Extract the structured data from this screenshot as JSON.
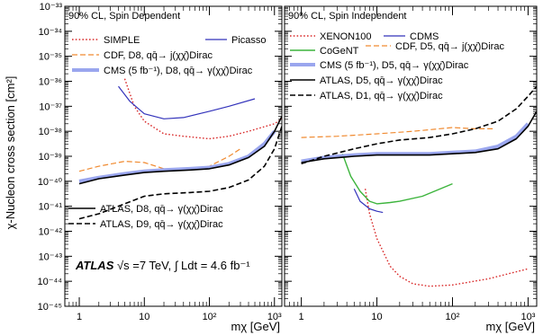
{
  "chart_data": {
    "type": "line",
    "ylabel": "χ-Nucleon cross section [cm²]",
    "y_scale": "log",
    "x_scale": "log",
    "ylim": [
      1e-45,
      1e-33
    ],
    "xlim": [
      0.6,
      1300
    ],
    "y_ticks": [
      "10⁻⁴⁵",
      "10⁻⁴⁴",
      "10⁻⁴³",
      "10⁻⁴²",
      "10⁻⁴¹",
      "10⁻⁴⁰",
      "10⁻³⁹",
      "10⁻³⁸",
      "10⁻³⁷",
      "10⁻³⁶",
      "10⁻³⁵",
      "10⁻³⁴",
      "10⁻³³"
    ],
    "panels": [
      {
        "corner_label": "90% CL, Spin Dependent",
        "xlabel": "mχ [GeV]",
        "x_ticks": [
          "1",
          "10",
          "10²",
          "10³"
        ],
        "series": [
          {
            "name": "SIMPLE",
            "color": "#d92b2b",
            "dash": "dotted",
            "width": 1.4,
            "x": [
              5,
              7,
              10,
              20,
              40,
              100,
              200,
              400,
              1000,
              1300
            ],
            "y": [
              -35.9,
              -37.0,
              -37.6,
              -38.1,
              -38.2,
              -38.3,
              -38.2,
              -38.0,
              -37.7,
              -37.5
            ]
          },
          {
            "name": "Picasso",
            "color": "#3333bb",
            "dash": "solid",
            "width": 1.2,
            "x": [
              4,
              6,
              10,
              20,
              40,
              100,
              200,
              500
            ],
            "y": [
              -36.2,
              -36.8,
              -37.3,
              -37.5,
              -37.45,
              -37.2,
              -37.0,
              -36.7
            ]
          },
          {
            "name": "CDF, D8, qq̄→ j(χχ̄)Dirac",
            "color": "#f08a30",
            "dash": "dashed",
            "width": 1.2,
            "x": [
              1,
              2,
              5,
              10,
              20,
              40,
              100,
              200,
              300
            ],
            "y": [
              -39.6,
              -39.4,
              -39.2,
              -39.25,
              -39.5,
              -39.55,
              -39.4,
              -39.0,
              -38.7
            ]
          },
          {
            "name": "CMS (5 fb⁻¹), D8, qq̄→ γ(χχ̄)Dirac",
            "color": "#9aa6ee",
            "dash": "solid",
            "width": 4,
            "x": [
              1,
              2,
              5,
              10,
              20,
              50,
              100,
              200,
              400,
              700,
              1000
            ],
            "y": [
              -40.0,
              -39.85,
              -39.7,
              -39.6,
              -39.55,
              -39.5,
              -39.45,
              -39.3,
              -39.0,
              -38.5,
              -38.0
            ]
          },
          {
            "name": "ATLAS, D8, qq̄→ γ(χχ̄)Dirac",
            "color": "#000000",
            "dash": "solid",
            "width": 1.6,
            "x": [
              1,
              2,
              5,
              10,
              20,
              50,
              100,
              200,
              400,
              700,
              1000,
              1300
            ],
            "y": [
              -40.1,
              -39.9,
              -39.75,
              -39.65,
              -39.6,
              -39.55,
              -39.5,
              -39.35,
              -39.05,
              -38.6,
              -38.0,
              -37.4
            ]
          },
          {
            "name": "ATLAS, D9, qq̄→ γ(χχ̄)Dirac",
            "color": "#000000",
            "dash": "dashed",
            "width": 1.6,
            "x": [
              1,
              2,
              5,
              10,
              20,
              50,
              100,
              200,
              400,
              700,
              1000,
              1300
            ],
            "y": [
              -41.5,
              -41.3,
              -40.9,
              -40.6,
              -40.5,
              -40.45,
              -40.4,
              -40.25,
              -39.95,
              -39.4,
              -38.7,
              -37.8
            ]
          }
        ],
        "atlas_label": {
          "bold": "ATLAS",
          "text": "√s =7 TeV, ∫ Ldt = 4.6 fb⁻¹"
        }
      },
      {
        "corner_label": "90% CL, Spin Independent",
        "xlabel": "mχ [GeV]",
        "x_ticks": [
          "1",
          "10",
          "10²",
          "10³"
        ],
        "series": [
          {
            "name": "XENON100",
            "color": "#d92b2b",
            "dash": "dotted",
            "width": 1.4,
            "x": [
              7,
              8,
              10,
              15,
              20,
              30,
              50,
              100,
              300,
              1000
            ],
            "y": [
              -40.3,
              -41.3,
              -42.3,
              -43.4,
              -43.8,
              -44.1,
              -44.2,
              -44.15,
              -43.9,
              -43.5
            ]
          },
          {
            "name": "CDMS",
            "color": "#3333bb",
            "dash": "solid",
            "width": 1.2,
            "x": [
              5,
              6,
              8,
              10,
              12
            ],
            "y": [
              -40.3,
              -40.8,
              -41.1,
              -41.2,
              -41.25
            ]
          },
          {
            "name": "CoGeNT",
            "color": "#3cb43c",
            "dash": "solid",
            "width": 1.4,
            "x": [
              3.5,
              4.5,
              6,
              8,
              10,
              15,
              20,
              40,
              100
            ],
            "y": [
              -38.9,
              -39.8,
              -40.4,
              -40.8,
              -40.9,
              -40.85,
              -40.8,
              -40.6,
              -40.1
            ]
          },
          {
            "name": "CDF, D5, qq̄→ j(χχ̄)Dirac",
            "color": "#f08a30",
            "dash": "dashed",
            "width": 1.2,
            "x": [
              1,
              3,
              10,
              30,
              100,
              200,
              350
            ],
            "y": [
              -38.25,
              -38.2,
              -38.1,
              -38.0,
              -37.85,
              -37.9,
              -37.9
            ]
          },
          {
            "name": "CMS (5 fb⁻¹), D5, qq̄→ γ(χχ̄)Dirac",
            "color": "#9aa6ee",
            "dash": "solid",
            "width": 4,
            "x": [
              1,
              2,
              5,
              10,
              20,
              50,
              100,
              200,
              400,
              700,
              1000
            ],
            "y": [
              -39.2,
              -39.05,
              -38.95,
              -38.9,
              -38.9,
              -38.9,
              -38.85,
              -38.8,
              -38.6,
              -38.2,
              -37.7
            ]
          },
          {
            "name": "ATLAS, D5, qq̄→ γ(χχ̄)Dirac",
            "color": "#000000",
            "dash": "solid",
            "width": 1.6,
            "x": [
              1,
              2,
              5,
              10,
              20,
              50,
              100,
              200,
              400,
              700,
              1000,
              1300
            ],
            "y": [
              -39.25,
              -39.1,
              -39.0,
              -38.95,
              -38.95,
              -38.95,
              -38.9,
              -38.85,
              -38.7,
              -38.3,
              -37.8,
              -37.2
            ]
          },
          {
            "name": "ATLAS, D1, qq̄→ γ(χχ̄)Dirac",
            "color": "#000000",
            "dash": "dashed",
            "width": 1.6,
            "x": [
              1,
              2,
              5,
              10,
              20,
              50,
              100,
              200,
              400,
              700,
              1000,
              1300
            ],
            "y": [
              -39.3,
              -39.0,
              -38.7,
              -38.5,
              -38.35,
              -38.25,
              -38.1,
              -37.9,
              -37.6,
              -37.1,
              -36.6,
              -36.2
            ]
          }
        ]
      }
    ]
  }
}
